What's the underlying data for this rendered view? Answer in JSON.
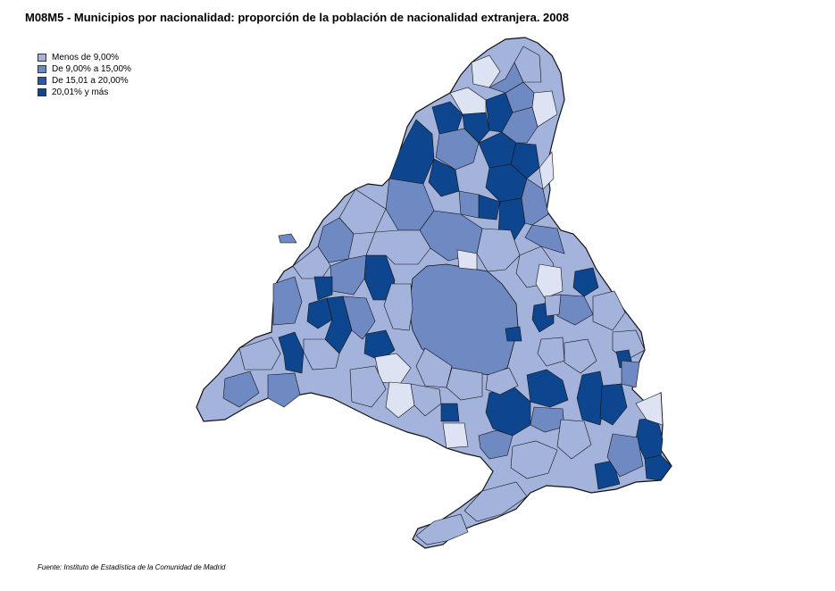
{
  "title": "M08M5 - Municipios por nacionalidad: proporción de la población de nacionalidad extranjera. 2008",
  "legend": [
    {
      "label": "Menos de 9,00%",
      "color": "#a4b3db"
    },
    {
      "label": "De 9,00% a 15,00%",
      "color": "#6f89c3"
    },
    {
      "label": "De 15,01 a 20,00%",
      "color": "#2a5aa6"
    },
    {
      "label": "20,01% y más",
      "color": "#0d468f"
    }
  ],
  "source": "Fuente: Instituto de Estadística de la Comunidad de Madrid",
  "colors": {
    "light": "#dde3f2",
    "c1": "#a4b3db",
    "c2": "#6f89c3",
    "c3": "#2a5aa6",
    "c4": "#0d468f",
    "border": "#111111"
  }
}
